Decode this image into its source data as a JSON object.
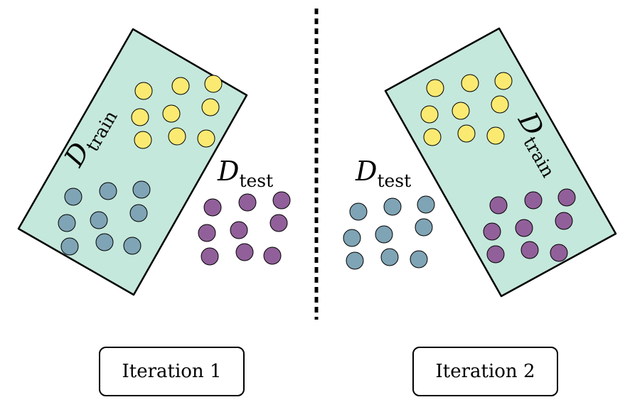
{
  "colors": {
    "set_fill": "#c5e8dc",
    "yellow": "#fbea72",
    "blue": "#7fa4b5",
    "purple": "#91609a",
    "stroke": "#000000"
  },
  "labels": {
    "d_letter": "D",
    "train_sub": "train",
    "test_sub": "test"
  },
  "iterations": [
    {
      "label": "Iteration 1"
    },
    {
      "label": "Iteration 2"
    }
  ]
}
